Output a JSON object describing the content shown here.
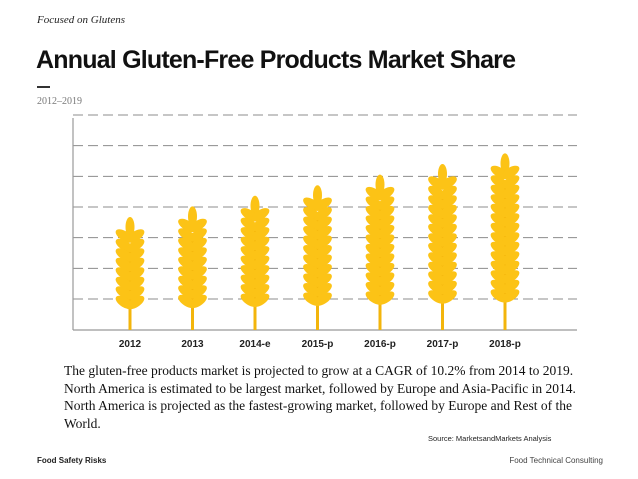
{
  "header": {
    "tag": "Focused on Glutens",
    "title": "Annual Gluten-Free Products Market Share",
    "subtitle": "2012–2019"
  },
  "chart_data": {
    "type": "bar",
    "style": "pictograph-wheat",
    "categories": [
      "2012",
      "2013",
      "2014-e",
      "2015-p",
      "2016-p",
      "2017-p",
      "2018-p"
    ],
    "values": [
      1.0,
      1.1,
      1.2,
      1.3,
      1.4,
      1.5,
      1.6
    ],
    "ylim": [
      0,
      2
    ],
    "grid": true,
    "gridline_count": 7,
    "title": "Annual Gluten-Free Products Market Share",
    "xlabel": "",
    "ylabel": "",
    "colors": {
      "grain": "#fcc316",
      "stem": "#f3b50c",
      "grid": "#8c8c8c",
      "axis": "#999999"
    }
  },
  "description": "The gluten-free products market is projected to grow at a CAGR of 10.2% from 2014 to 2019. North America is estimated to be largest market, followed by Europe and Asia-Pacific in 2014. North America is projected as the fastest-growing market, followed by Europe and Rest of the World.",
  "source": "Source: MarketsandMarkets Analysis",
  "footer": {
    "left": "Food Safety Risks",
    "right": "Food Technical Consulting"
  }
}
